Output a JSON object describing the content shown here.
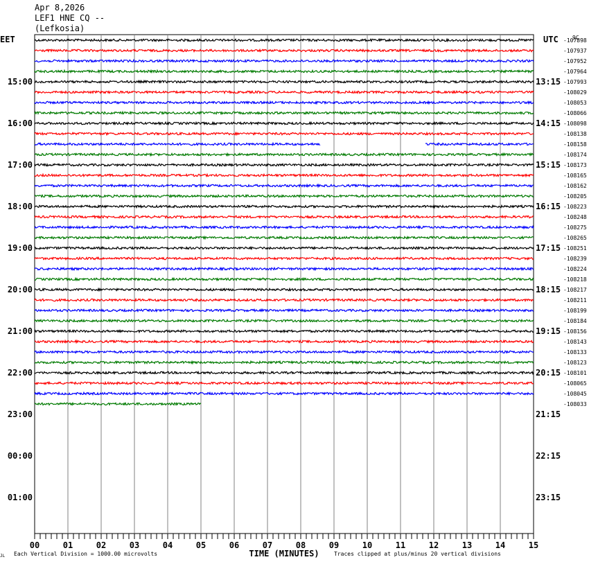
{
  "header": {
    "date": "Apr 8,2026",
    "station": "LEF1 HNE CQ --",
    "location": "(Lefkosia)"
  },
  "chart_data": {
    "type": "line",
    "title": "",
    "xlabel": "TIME (MINUTES)",
    "ylabel": "",
    "left_zone_label": "EET",
    "right_zone_label": "UTC",
    "xlim": [
      0,
      15
    ],
    "x_ticks": [
      "00",
      "01",
      "02",
      "03",
      "04",
      "05",
      "06",
      "07",
      "08",
      "09",
      "10",
      "11",
      "12",
      "13",
      "14",
      "15"
    ],
    "left_hour_labels": [
      "15:00",
      "16:00",
      "17:00",
      "18:00",
      "19:00",
      "20:00",
      "21:00",
      "22:00",
      "23:00",
      "00:00",
      "01:00"
    ],
    "right_hour_labels": [
      "13:15",
      "14:15",
      "15:15",
      "16:15",
      "17:15",
      "18:15",
      "19:15",
      "20:15",
      "21:15",
      "22:15",
      "23:15"
    ],
    "row_values": [
      "-107898",
      "-107937",
      "-107952",
      "-107964",
      "-107993",
      "-108029",
      "-108053",
      "-108066",
      "-108098",
      "-108138",
      "-108158",
      "-108174",
      "-108173",
      "-108165",
      "-108162",
      "-108205",
      "-108223",
      "-108248",
      "-108275",
      "-108265",
      "-108251",
      "-108239",
      "-108224",
      "-108218",
      "-108217",
      "-108211",
      "-108199",
      "-108184",
      "-108156",
      "-108143",
      "-108133",
      "-108123",
      "-108101",
      "-108065",
      "-108045",
      "-108033"
    ],
    "trace_colors": [
      "#000000",
      "#ff0000",
      "#0000ff",
      "#007a00"
    ],
    "trace_count": 36,
    "last_trace_end_minute": 5.0,
    "gaps": [
      {
        "trace": 10,
        "from": 8.6,
        "to": 11.75
      }
    ],
    "scale_note": "Each Vertical Division = 1000.00 microvolts",
    "clip_note": "Traces clipped at plus/minus 20 vertical divisions",
    "corner_mark_left": "JL",
    "corner_mark_right": "9C"
  }
}
